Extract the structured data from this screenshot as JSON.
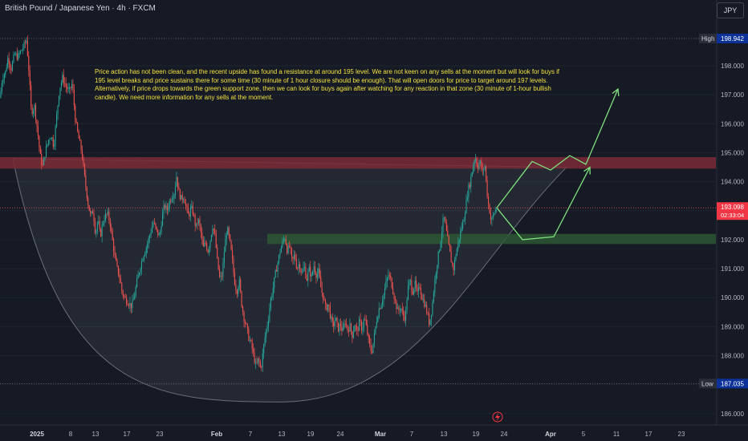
{
  "header": {
    "symbol_title": "British Pound / Japanese Yen · 4h · FXCM",
    "currency_button": "JPY"
  },
  "annotation": {
    "text": "Price action has not been clean, and the recent upside has found a resistance at around 195 level. We are not keen on any sells at the moment but will look for buys if 195 level breaks and price sustains there for some time (30 minute of 1 hour closure should be enough). That will open doors for price to target around 197 levels. Alternatively, if price drops towards the green support zone, then we can look for buys again after watching for any reaction in that zone (30 minute of 1-hour bullish candle). We need more information for any sells at the moment."
  },
  "colors": {
    "background": "#161a25",
    "bull": "#26a69a",
    "bear": "#ef5350",
    "resistance_zone": "#7a2a36",
    "support_zone": "#2e5a33",
    "projection": "#7ee07e",
    "annotation_text": "#f0e040",
    "current_price_bg": "#f23645",
    "label_bg": "#0c3299"
  },
  "chart_data": {
    "type": "candlestick",
    "title": "British Pound / Japanese Yen · 4h · FXCM",
    "ylim": [
      185.8,
      199.8
    ],
    "y_ticks": [
      "186.000",
      "187.000",
      "188.000",
      "189.000",
      "190.000",
      "191.000",
      "192.000",
      "193.000",
      "194.000",
      "195.000",
      "196.000",
      "197.000",
      "198.000"
    ],
    "x_tick_labels": [
      "2025",
      "8",
      "13",
      "17",
      "23",
      "Feb",
      "7",
      "13",
      "19",
      "24",
      "Mar",
      "7",
      "13",
      "19",
      "24",
      "Apr",
      "5",
      "11",
      "17",
      "23"
    ],
    "high": {
      "label": "High",
      "value": "198.942"
    },
    "low": {
      "label": "Low",
      "value": "187.035"
    },
    "current_price": {
      "value": "193.098",
      "countdown": "02:33:04"
    },
    "zones": [
      {
        "name": "resistance",
        "from": 194.45,
        "to": 194.85
      },
      {
        "name": "support",
        "from": 191.85,
        "to": 192.2
      }
    ],
    "path": [
      [
        0,
        196.9
      ],
      [
        3,
        197.6
      ],
      [
        7,
        197.8
      ],
      [
        10,
        198.3
      ],
      [
        14,
        197.9
      ],
      [
        18,
        198.4
      ],
      [
        22,
        198.3
      ],
      [
        26,
        198.5
      ],
      [
        30,
        198.7
      ],
      [
        33,
        198.9
      ],
      [
        36,
        197.8
      ],
      [
        39,
        196.4
      ],
      [
        43,
        196.6
      ],
      [
        47,
        195.7
      ],
      [
        50,
        194.9
      ],
      [
        53,
        194.5
      ],
      [
        57,
        195.1
      ],
      [
        61,
        195.5
      ],
      [
        64,
        195.6
      ],
      [
        67,
        195.2
      ],
      [
        70,
        196.1
      ],
      [
        74,
        197.2
      ],
      [
        78,
        197.6
      ],
      [
        82,
        197.3
      ],
      [
        86,
        197.1
      ],
      [
        90,
        197.4
      ],
      [
        94,
        196.1
      ],
      [
        98,
        195.5
      ],
      [
        102,
        195.0
      ],
      [
        106,
        194.0
      ],
      [
        110,
        193.2
      ],
      [
        113,
        192.8
      ],
      [
        116,
        193.0
      ],
      [
        119,
        192.2
      ],
      [
        122,
        192.7
      ],
      [
        125,
        192.1
      ],
      [
        128,
        192.6
      ],
      [
        131,
        192.8
      ],
      [
        134,
        192.9
      ],
      [
        137,
        192.6
      ],
      [
        140,
        192.0
      ],
      [
        143,
        191.4
      ],
      [
        146,
        191.0
      ],
      [
        149,
        190.7
      ],
      [
        152,
        190.2
      ],
      [
        155,
        190.0
      ],
      [
        158,
        189.9
      ],
      [
        161,
        189.8
      ],
      [
        164,
        189.7
      ],
      [
        167,
        190.0
      ],
      [
        171,
        190.6
      ],
      [
        175,
        191.1
      ],
      [
        179,
        191.5
      ],
      [
        183,
        191.8
      ],
      [
        187,
        192.2
      ],
      [
        191,
        192.6
      ],
      [
        195,
        192.3
      ],
      [
        199,
        192.1
      ],
      [
        202,
        192.8
      ],
      [
        205,
        193.2
      ],
      [
        208,
        193.0
      ],
      [
        211,
        193.3
      ],
      [
        214,
        193.5
      ],
      [
        217,
        193.6
      ],
      [
        220,
        194.2
      ],
      [
        223,
        193.6
      ],
      [
        226,
        193.4
      ],
      [
        229,
        193.5
      ],
      [
        232,
        193.1
      ],
      [
        235,
        192.8
      ],
      [
        238,
        193.1
      ],
      [
        241,
        192.9
      ],
      [
        244,
        192.4
      ],
      [
        247,
        192.7
      ],
      [
        250,
        192.3
      ],
      [
        253,
        191.7
      ],
      [
        256,
        191.9
      ],
      [
        259,
        191.6
      ],
      [
        262,
        192.0
      ],
      [
        265,
        192.5
      ],
      [
        268,
        192.1
      ],
      [
        271,
        191.2
      ],
      [
        274,
        190.6
      ],
      [
        277,
        190.8
      ],
      [
        280,
        191.8
      ],
      [
        283,
        192.4
      ],
      [
        286,
        192.0
      ],
      [
        289,
        191.4
      ],
      [
        292,
        190.6
      ],
      [
        295,
        190.2
      ],
      [
        298,
        190.6
      ],
      [
        301,
        189.8
      ],
      [
        304,
        189.3
      ],
      [
        307,
        189.0
      ],
      [
        310,
        188.6
      ],
      [
        313,
        188.4
      ],
      [
        316,
        188.0
      ],
      [
        319,
        187.6
      ],
      [
        322,
        187.9
      ],
      [
        325,
        187.5
      ],
      [
        328,
        188.2
      ],
      [
        331,
        188.8
      ],
      [
        334,
        189.2
      ],
      [
        337,
        189.9
      ],
      [
        340,
        190.3
      ],
      [
        343,
        190.8
      ],
      [
        346,
        191.2
      ],
      [
        349,
        191.6
      ],
      [
        352,
        191.9
      ],
      [
        355,
        192.1
      ],
      [
        358,
        191.6
      ],
      [
        361,
        191.8
      ],
      [
        364,
        191.2
      ],
      [
        367,
        191.5
      ],
      [
        370,
        191.0
      ],
      [
        373,
        191.2
      ],
      [
        376,
        190.8
      ],
      [
        379,
        191.1
      ],
      [
        382,
        190.6
      ],
      [
        385,
        191.0
      ],
      [
        388,
        190.7
      ],
      [
        391,
        191.1
      ],
      [
        394,
        190.8
      ],
      [
        397,
        190.9
      ],
      [
        400,
        190.3
      ],
      [
        403,
        190.0
      ],
      [
        406,
        189.6
      ],
      [
        409,
        189.8
      ],
      [
        412,
        189.3
      ],
      [
        415,
        189.0
      ],
      [
        418,
        189.3
      ],
      [
        421,
        188.9
      ],
      [
        424,
        189.1
      ],
      [
        427,
        188.8
      ],
      [
        430,
        189.2
      ],
      [
        433,
        188.9
      ],
      [
        436,
        189.0
      ],
      [
        439,
        188.7
      ],
      [
        442,
        189.1
      ],
      [
        445,
        188.8
      ],
      [
        448,
        189.2
      ],
      [
        451,
        188.9
      ],
      [
        454,
        189.3
      ],
      [
        457,
        188.9
      ],
      [
        460,
        188.4
      ],
      [
        463,
        188.1
      ],
      [
        466,
        188.6
      ],
      [
        469,
        189.2
      ],
      [
        472,
        189.6
      ],
      [
        475,
        189.8
      ],
      [
        478,
        190.1
      ],
      [
        481,
        190.5
      ],
      [
        484,
        190.8
      ],
      [
        487,
        190.6
      ],
      [
        490,
        190.2
      ],
      [
        493,
        189.8
      ],
      [
        496,
        189.5
      ],
      [
        499,
        189.7
      ],
      [
        502,
        189.4
      ],
      [
        505,
        189.3
      ],
      [
        508,
        190.3
      ],
      [
        511,
        190.6
      ],
      [
        514,
        190.2
      ],
      [
        517,
        190.5
      ],
      [
        520,
        190.1
      ],
      [
        523,
        190.4
      ],
      [
        526,
        190.0
      ],
      [
        529,
        189.8
      ],
      [
        532,
        189.5
      ],
      [
        535,
        189.1
      ],
      [
        538,
        189.6
      ],
      [
        541,
        190.4
      ],
      [
        544,
        191.1
      ],
      [
        547,
        191.6
      ],
      [
        550,
        192.2
      ],
      [
        553,
        192.8
      ],
      [
        556,
        192.3
      ],
      [
        559,
        191.8
      ],
      [
        562,
        191.3
      ],
      [
        565,
        191.0
      ],
      [
        568,
        191.5
      ],
      [
        571,
        191.9
      ],
      [
        574,
        192.3
      ],
      [
        577,
        192.6
      ],
      [
        580,
        193.1
      ],
      [
        583,
        193.7
      ],
      [
        586,
        194.0
      ],
      [
        589,
        194.5
      ],
      [
        592,
        194.9
      ],
      [
        595,
        194.5
      ],
      [
        598,
        194.7
      ],
      [
        601,
        194.3
      ],
      [
        604,
        194.6
      ],
      [
        606,
        193.9
      ],
      [
        608,
        193.3
      ],
      [
        610,
        193.0
      ],
      [
        612,
        192.6
      ],
      [
        614,
        192.8
      ],
      [
        617,
        193.0
      ],
      [
        620,
        193.1
      ]
    ],
    "projections": [
      [
        [
          619,
          193.1
        ],
        [
          663,
          194.7
        ],
        [
          686,
          194.4
        ],
        [
          710,
          194.9
        ],
        [
          730,
          194.6
        ],
        [
          770,
          197.2
        ]
      ],
      [
        [
          619,
          193.1
        ],
        [
          651,
          192.0
        ],
        [
          690,
          192.1
        ],
        [
          735,
          194.5
        ]
      ]
    ],
    "cup_curve": {
      "left_top": [
        16,
        194.8
      ],
      "bottom": [
        350,
        186.4
      ],
      "right_top": [
        706,
        194.5
      ]
    }
  }
}
